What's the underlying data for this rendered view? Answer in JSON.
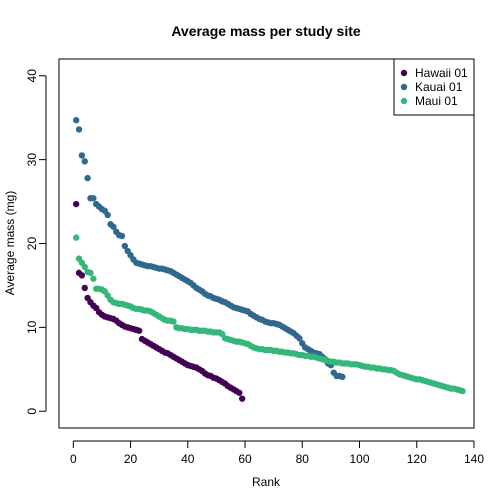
{
  "chart_data": {
    "type": "scatter",
    "title": "Average mass per study site",
    "xlabel": "Rank",
    "ylabel": "Average mass (mg)",
    "xlim": [
      -5,
      140
    ],
    "ylim": [
      -2,
      42
    ],
    "xticks": [
      0,
      20,
      40,
      60,
      80,
      100,
      120,
      140
    ],
    "yticks": [
      0,
      10,
      20,
      30,
      40
    ],
    "legend_position": "top-right",
    "grid": false,
    "series": [
      {
        "name": "Hawaii 01",
        "color": "#440154",
        "x": [
          1,
          2,
          3,
          4,
          5,
          6,
          7,
          8,
          9,
          10,
          11,
          12,
          13,
          14,
          15,
          16,
          17,
          18,
          19,
          20,
          21,
          22,
          23,
          24,
          25,
          26,
          27,
          28,
          29,
          30,
          31,
          32,
          33,
          34,
          35,
          36,
          37,
          38,
          39,
          40,
          41,
          42,
          43,
          44,
          45,
          46,
          47,
          48,
          49,
          50,
          51,
          52,
          53,
          54,
          55,
          56,
          57,
          58,
          59
        ],
        "y": [
          24.7,
          16.5,
          16.2,
          14.7,
          13.5,
          13.0,
          12.6,
          12.3,
          11.8,
          11.5,
          11.3,
          11.2,
          11.1,
          11.0,
          10.8,
          10.5,
          10.3,
          10.1,
          10.0,
          9.9,
          9.8,
          9.7,
          9.6,
          8.6,
          8.4,
          8.2,
          8.0,
          7.8,
          7.6,
          7.4,
          7.2,
          7.0,
          6.9,
          6.7,
          6.5,
          6.3,
          6.1,
          5.9,
          5.7,
          5.5,
          5.4,
          5.3,
          5.2,
          5.0,
          4.8,
          4.5,
          4.3,
          4.2,
          4.0,
          3.9,
          3.7,
          3.5,
          3.3,
          3.0,
          2.8,
          2.6,
          2.4,
          2.2,
          1.5
        ]
      },
      {
        "name": "Kauai 01",
        "color": "#31688e",
        "x": [
          1,
          2,
          3,
          4,
          5,
          6,
          7,
          8,
          9,
          10,
          11,
          12,
          13,
          14,
          15,
          16,
          17,
          18,
          19,
          20,
          21,
          22,
          23,
          24,
          25,
          26,
          27,
          28,
          29,
          30,
          31,
          32,
          33,
          34,
          35,
          36,
          37,
          38,
          39,
          40,
          41,
          42,
          43,
          44,
          45,
          46,
          47,
          48,
          49,
          50,
          51,
          52,
          53,
          54,
          55,
          56,
          57,
          58,
          59,
          60,
          61,
          62,
          63,
          64,
          65,
          66,
          67,
          68,
          69,
          70,
          71,
          72,
          73,
          74,
          75,
          76,
          77,
          78,
          79,
          80,
          81,
          82,
          83,
          84,
          85,
          86,
          87,
          88,
          89,
          90,
          91,
          92,
          93,
          94
        ],
        "y": [
          34.7,
          33.6,
          30.5,
          29.8,
          27.8,
          25.4,
          25.4,
          24.7,
          24.4,
          24.1,
          23.9,
          23.4,
          22.3,
          22.0,
          21.4,
          21.0,
          20.9,
          19.7,
          19.1,
          18.6,
          18.1,
          17.7,
          17.6,
          17.5,
          17.4,
          17.3,
          17.3,
          17.2,
          17.1,
          17.0,
          17.0,
          16.9,
          16.8,
          16.7,
          16.5,
          16.3,
          16.1,
          15.9,
          15.7,
          15.5,
          15.3,
          15.0,
          14.7,
          14.5,
          14.3,
          14.0,
          13.8,
          13.7,
          13.5,
          13.4,
          13.3,
          13.1,
          13.0,
          12.8,
          12.6,
          12.4,
          12.3,
          12.2,
          12.1,
          12.0,
          11.9,
          11.6,
          11.4,
          11.2,
          11.0,
          10.9,
          10.7,
          10.6,
          10.5,
          10.5,
          10.4,
          10.3,
          10.1,
          9.9,
          9.7,
          9.5,
          9.3,
          9.0,
          8.7,
          8.1,
          7.6,
          7.4,
          7.2,
          7.0,
          6.9,
          6.8,
          6.5,
          6.2,
          5.7,
          5.5,
          4.6,
          4.2,
          4.2,
          4.1
        ]
      },
      {
        "name": "Maui 01",
        "color": "#35b779",
        "x": [
          1,
          2,
          3,
          4,
          5,
          6,
          7,
          8,
          9,
          10,
          11,
          12,
          13,
          14,
          15,
          16,
          17,
          18,
          19,
          20,
          21,
          22,
          23,
          24,
          25,
          26,
          27,
          28,
          29,
          30,
          31,
          32,
          33,
          34,
          35,
          36,
          37,
          38,
          39,
          40,
          41,
          42,
          43,
          44,
          45,
          46,
          47,
          48,
          49,
          50,
          51,
          52,
          53,
          54,
          55,
          56,
          57,
          58,
          59,
          60,
          61,
          62,
          63,
          64,
          65,
          66,
          67,
          68,
          69,
          70,
          71,
          72,
          73,
          74,
          75,
          76,
          77,
          78,
          79,
          80,
          81,
          82,
          83,
          84,
          85,
          86,
          87,
          88,
          89,
          90,
          91,
          92,
          93,
          94,
          95,
          96,
          97,
          98,
          99,
          100,
          101,
          102,
          103,
          104,
          105,
          106,
          107,
          108,
          109,
          110,
          111,
          112,
          113,
          114,
          115,
          116,
          117,
          118,
          119,
          120,
          121,
          122,
          123,
          124,
          125,
          126,
          127,
          128,
          129,
          130,
          131,
          132,
          133,
          134,
          135,
          136
        ],
        "y": [
          20.7,
          18.2,
          17.7,
          17.2,
          16.6,
          16.5,
          15.8,
          14.6,
          14.6,
          14.5,
          14.3,
          13.8,
          13.3,
          13.0,
          12.9,
          12.8,
          12.8,
          12.7,
          12.6,
          12.5,
          12.3,
          12.2,
          12.2,
          12.1,
          12.0,
          12.0,
          11.9,
          11.7,
          11.5,
          11.3,
          11.1,
          10.9,
          10.8,
          10.8,
          10.7,
          10.0,
          9.9,
          9.9,
          9.8,
          9.8,
          9.7,
          9.7,
          9.7,
          9.6,
          9.6,
          9.6,
          9.5,
          9.5,
          9.4,
          9.4,
          9.4,
          9.2,
          8.7,
          8.6,
          8.5,
          8.4,
          8.3,
          8.3,
          8.2,
          8.1,
          8.0,
          7.8,
          7.6,
          7.5,
          7.4,
          7.4,
          7.3,
          7.3,
          7.3,
          7.2,
          7.2,
          7.1,
          7.1,
          7.0,
          7.0,
          6.9,
          6.9,
          6.8,
          6.7,
          6.7,
          6.6,
          6.6,
          6.5,
          6.5,
          6.4,
          6.3,
          6.2,
          6.1,
          6.0,
          5.9,
          5.9,
          5.8,
          5.8,
          5.7,
          5.7,
          5.7,
          5.6,
          5.6,
          5.6,
          5.5,
          5.4,
          5.3,
          5.3,
          5.2,
          5.2,
          5.1,
          5.1,
          5.0,
          5.0,
          4.9,
          4.9,
          4.8,
          4.6,
          4.4,
          4.3,
          4.2,
          4.1,
          4.0,
          3.9,
          3.8,
          3.8,
          3.7,
          3.6,
          3.5,
          3.4,
          3.3,
          3.2,
          3.1,
          3.0,
          2.9,
          2.8,
          2.7,
          2.7,
          2.6,
          2.5,
          2.4
        ]
      }
    ]
  }
}
